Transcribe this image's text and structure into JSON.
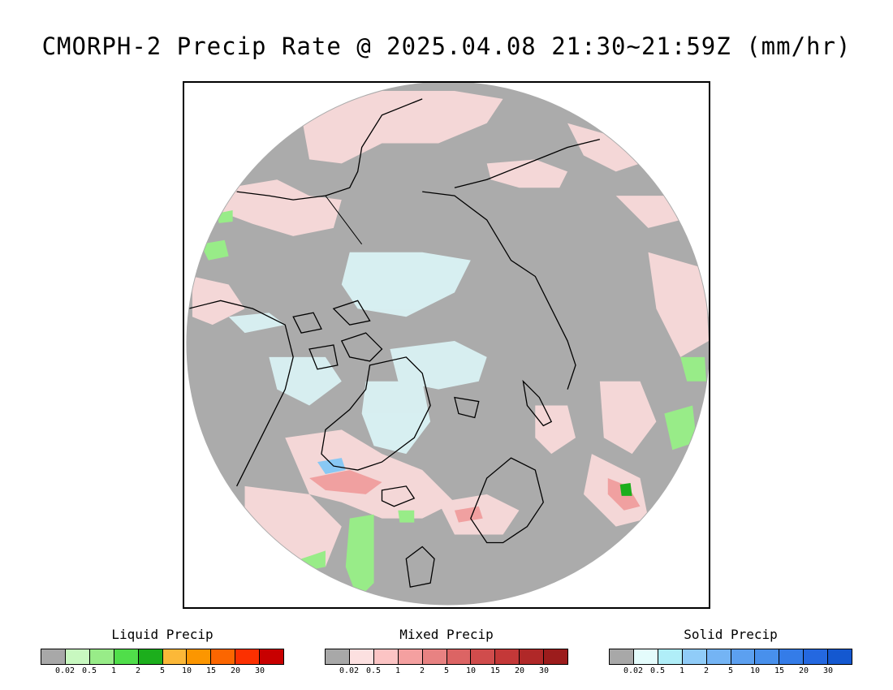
{
  "title": "CMORPH-2 Precip Rate @ 2025.04.08 21:30~21:59Z (mm/hr)",
  "map": {
    "projection": "north-polar-stereographic",
    "background_color": "#ababab",
    "coastline_color": "#000000"
  },
  "legends": [
    {
      "title": "Liquid Precip",
      "colors": [
        "#a8a8a8",
        "#c8f8c0",
        "#98ec88",
        "#50de4a",
        "#1cae1c",
        "#fcb838",
        "#fc9600",
        "#fc6600",
        "#fc3000",
        "#c80000"
      ],
      "ticks": [
        "0.02",
        "0.5",
        "1",
        "2",
        "5",
        "10",
        "15",
        "20",
        "30"
      ]
    },
    {
      "title": "Mixed Precip",
      "colors": [
        "#a8a8a8",
        "#fce0e0",
        "#fcc4c4",
        "#f4a0a0",
        "#e88282",
        "#dc6464",
        "#d04c4c",
        "#c43838",
        "#b02828",
        "#9c1c1c"
      ],
      "ticks": [
        "0.02",
        "0.5",
        "1",
        "2",
        "5",
        "10",
        "15",
        "20",
        "30"
      ]
    },
    {
      "title": "Solid Precip",
      "colors": [
        "#a8a8a8",
        "#e4fcfc",
        "#b0eef8",
        "#90ccf8",
        "#74b4f4",
        "#5ca0f0",
        "#4890ec",
        "#347ce8",
        "#2468e0",
        "#1458d0"
      ],
      "ticks": [
        "0.02",
        "0.5",
        "1",
        "2",
        "5",
        "10",
        "15",
        "20",
        "30"
      ]
    }
  ]
}
